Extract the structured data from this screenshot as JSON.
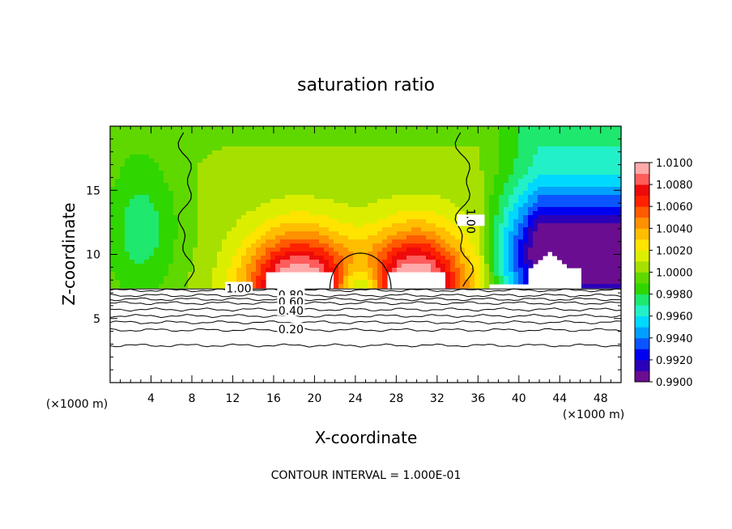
{
  "chart_data": {
    "type": "heatmap",
    "title": "saturation ratio",
    "xlabel": "X-coordinate",
    "ylabel": "Z-coordinate",
    "x_unit_label": "(×1000 m)",
    "footer": "CONTOUR INTERVAL = 1.000E-01",
    "xlim": [
      0,
      50
    ],
    "ylim": [
      0,
      20
    ],
    "x_ticks": [
      4,
      8,
      12,
      16,
      20,
      24,
      28,
      32,
      36,
      40,
      44,
      48
    ],
    "y_ticks": [
      5,
      10,
      15
    ],
    "colorbar": {
      "min": 0.99,
      "max": 1.01,
      "step": 0.001,
      "tick_labels": [
        "1.0100",
        "1.0080",
        "1.0060",
        "1.0040",
        "1.0020",
        "1.0000",
        "0.9980",
        "0.9960",
        "0.9940",
        "0.9920",
        "0.9900"
      ],
      "colors": [
        "#6a0d91",
        "#2b00b8",
        "#0000f0",
        "#0a55ff",
        "#00a0ff",
        "#00d9ff",
        "#22f0c8",
        "#1ee86e",
        "#30d600",
        "#5fd800",
        "#a6e000",
        "#dcee00",
        "#ffe400",
        "#ffbe00",
        "#ff9000",
        "#ff5a00",
        "#ff2200",
        "#ee0a0a",
        "#ff5c5c",
        "#ffaaaa"
      ]
    },
    "contour_labels": [
      "1.00",
      "1.00",
      "0.80",
      "0.60",
      "0.40",
      "0.20"
    ],
    "contour_label_values": [
      1.0,
      1.0,
      0.8,
      0.6,
      0.4,
      0.2
    ],
    "contour_lines_low": [
      {
        "value": 0.9,
        "z": 7.2
      },
      {
        "value": 0.8,
        "z": 6.8
      },
      {
        "value": 0.7,
        "z": 6.5
      },
      {
        "value": 0.6,
        "z": 6.2
      },
      {
        "value": 0.5,
        "z": 5.7
      },
      {
        "value": 0.4,
        "z": 5.2
      },
      {
        "value": 0.3,
        "z": 4.7
      },
      {
        "value": 0.2,
        "z": 4.1
      },
      {
        "value": 0.1,
        "z": 2.9
      }
    ],
    "saturation_region": {
      "z_base": 7.3
    },
    "cloud_cells": [
      {
        "x_center": 18.5,
        "z_bottom": 7.3,
        "z_top": 13.8,
        "half_width": 6.0,
        "peak": 1.009
      },
      {
        "x_center": 30.0,
        "z_bottom": 7.3,
        "z_top": 14.0,
        "half_width": 5.5,
        "peak": 1.009
      },
      {
        "x_center": 24.5,
        "z_bottom": 7.3,
        "z_top": 10.0,
        "half_width": 2.5,
        "peak": 0.9965
      }
    ],
    "dry_region": {
      "x_start": 36,
      "x_end": 50,
      "min_value": 0.99
    }
  }
}
